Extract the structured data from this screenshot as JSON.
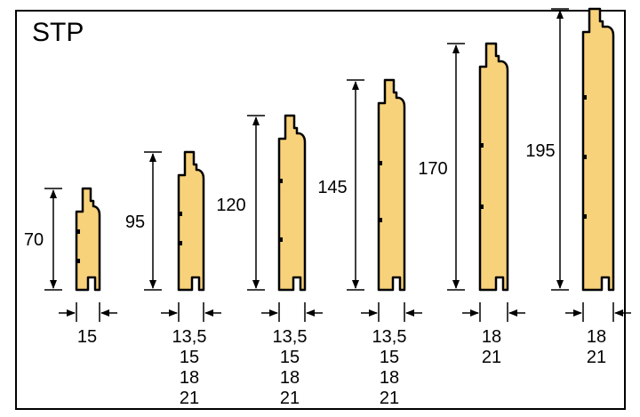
{
  "title": "STP",
  "profiles": [
    {
      "height": "70",
      "thickness": [
        "15"
      ]
    },
    {
      "height": "95",
      "thickness": [
        "13,5",
        "15",
        "18",
        "21"
      ]
    },
    {
      "height": "120",
      "thickness": [
        "13,5",
        "15",
        "18",
        "21"
      ]
    },
    {
      "height": "145",
      "thickness": [
        "13,5",
        "15",
        "18",
        "21"
      ]
    },
    {
      "height": "170",
      "thickness": [
        "18",
        "21"
      ]
    },
    {
      "height": "195",
      "thickness": [
        "18",
        "21"
      ]
    }
  ],
  "colors": {
    "board": "#f8d27a",
    "outline": "#000000",
    "background": "#ffffff"
  }
}
